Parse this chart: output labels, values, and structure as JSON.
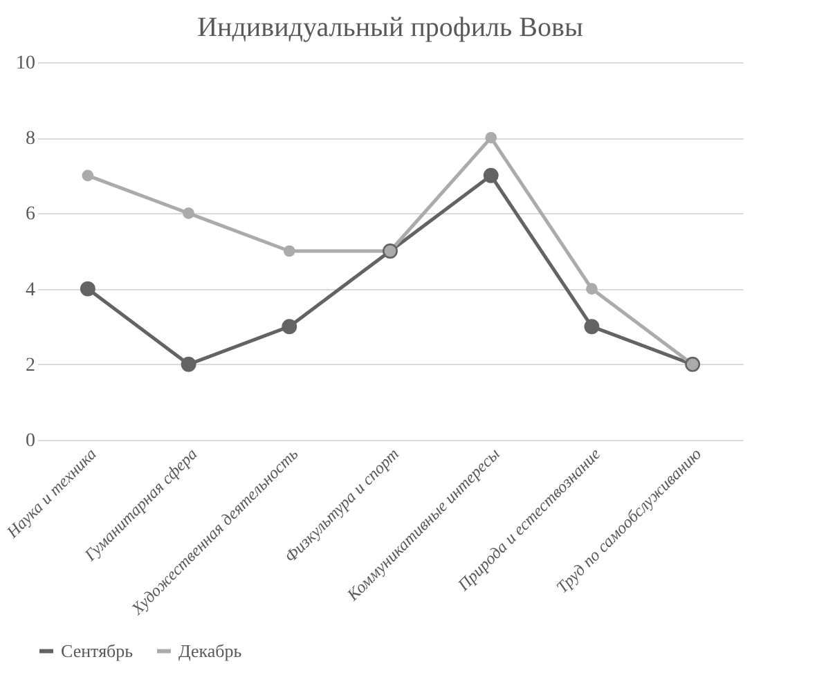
{
  "chart_data": {
    "type": "line",
    "title": "Индивидуальный профиль Вовы",
    "categories": [
      "Наука и техника",
      "Гуманитарная сфера",
      "Художественная деятельность",
      "Физкультура и спорт",
      "Коммуникативные интересы",
      "Природа и естествознание",
      "Труд по самообслуживанию"
    ],
    "series": [
      {
        "name": "Сентябрь",
        "color": "#636363",
        "values": [
          4,
          2,
          3,
          5,
          7,
          3,
          2
        ]
      },
      {
        "name": "Декабрь",
        "color": "#ababab",
        "values": [
          7,
          6,
          5,
          5,
          8,
          4,
          2
        ]
      }
    ],
    "ylim": [
      0,
      10
    ],
    "yticks": [
      0,
      2,
      4,
      6,
      8,
      10
    ],
    "grid": "y",
    "legend": "bottom",
    "marker": "circle",
    "line_style": "solid"
  }
}
